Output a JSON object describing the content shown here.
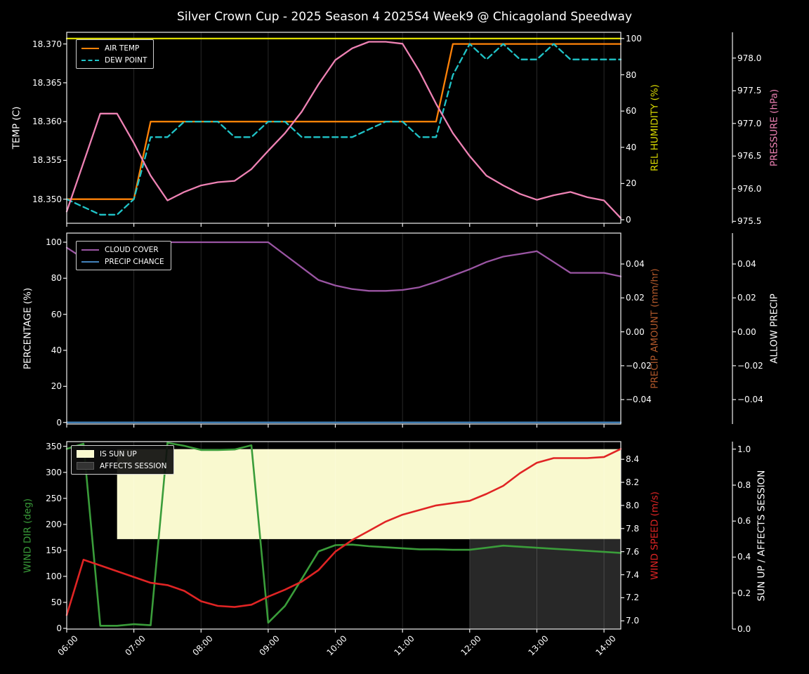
{
  "title": "Silver Crown Cup - 2025 Season 4 2025S4 Week9 @ Chicagoland Speedway",
  "colors": {
    "background": "#000000",
    "text": "#ffffff",
    "spine": "#efefef",
    "grid": "rgba(255,255,255,0.16)",
    "air_temp": "#ff8208",
    "dew_point": "#20c4c8",
    "rel_humidity": "#dcdc00",
    "pressure": "#ee82b4",
    "cloud_cover": "#9a55a3",
    "precip_chance": "#4383bc",
    "precip_amount": "#b2592b",
    "wind_dir": "#3a9d3a",
    "wind_speed": "#e02424",
    "sun_fill": "#f9f9cf",
    "affects_fill": "#282828",
    "affects_patch": "#333333"
  },
  "chart_data": {
    "type": "line",
    "x": {
      "label_unit": "time of day",
      "hours": [
        6,
        6.25,
        6.5,
        6.75,
        7,
        7.25,
        7.5,
        7.75,
        8,
        8.25,
        8.5,
        8.75,
        9,
        9.25,
        9.5,
        9.75,
        10,
        10.25,
        10.5,
        10.75,
        11,
        11.25,
        11.5,
        11.75,
        12,
        12.25,
        12.5,
        12.75,
        13,
        13.25,
        13.5,
        13.75,
        14,
        14.25
      ],
      "tick_hours": [
        6,
        7,
        8,
        9,
        10,
        11,
        12,
        13,
        14
      ],
      "tick_labels": [
        "06:00",
        "07:00",
        "08:00",
        "09:00",
        "10:00",
        "11:00",
        "12:00",
        "13:00",
        "14:00"
      ]
    },
    "panels": [
      {
        "name": "temperature-humidity-pressure",
        "axes": {
          "left": {
            "label": "TEMP (C)",
            "color": "#ffffff",
            "tick_labels": [
              "18.350",
              "18.355",
              "18.360",
              "18.365",
              "18.370"
            ],
            "tick_values": [
              18.35,
              18.355,
              18.36,
              18.365,
              18.37
            ],
            "range": [
              18.3469,
              18.3715
            ]
          },
          "right_inner": {
            "label": "REL HUMIDITY (%)",
            "color": "#dcdc00",
            "tick_labels": [
              "0",
              "20",
              "40",
              "60",
              "80",
              "100"
            ],
            "tick_values": [
              0,
              20,
              40,
              60,
              80,
              100
            ],
            "range": [
              -1.94,
              103.46
            ]
          },
          "right_outer": {
            "label": "PRESSURE (hPa)",
            "color": "#ee82b4",
            "tick_labels": [
              "975.5",
              "976.0",
              "976.5",
              "977.0",
              "977.5",
              "978.0"
            ],
            "tick_values": [
              975.5,
              976.0,
              976.5,
              977.0,
              977.5,
              978.0
            ],
            "range": [
              975.471,
              978.395
            ]
          }
        },
        "legend": [
          {
            "label": "AIR TEMP",
            "swatch": "line",
            "color": "#ff8208"
          },
          {
            "label": "DEW POINT",
            "swatch": "dash",
            "color": "#20c4c8"
          }
        ],
        "series": [
          {
            "name": "AIR TEMP",
            "axis": "left",
            "color": "#ff8208",
            "dash": false,
            "values": [
              18.35,
              18.35,
              18.35,
              18.35,
              18.35,
              18.36,
              18.36,
              18.36,
              18.36,
              18.36,
              18.36,
              18.36,
              18.36,
              18.36,
              18.36,
              18.36,
              18.36,
              18.36,
              18.36,
              18.36,
              18.36,
              18.36,
              18.36,
              18.37,
              18.37,
              18.37,
              18.37,
              18.37,
              18.37,
              18.37,
              18.37,
              18.37,
              18.37,
              18.37
            ]
          },
          {
            "name": "DEW POINT",
            "axis": "left",
            "color": "#20c4c8",
            "dash": true,
            "values": [
              18.35,
              18.349,
              18.348,
              18.348,
              18.35,
              18.358,
              18.358,
              18.36,
              18.36,
              18.36,
              18.358,
              18.358,
              18.36,
              18.36,
              18.358,
              18.358,
              18.358,
              18.358,
              18.359,
              18.36,
              18.36,
              18.358,
              18.358,
              18.366,
              18.37,
              18.368,
              18.37,
              18.368,
              18.368,
              18.37,
              18.368,
              18.368,
              18.368,
              18.368
            ]
          },
          {
            "name": "REL HUMIDITY",
            "axis": "right_inner",
            "color": "#dcdc00",
            "dash": false,
            "values": [
              100,
              100,
              100,
              100,
              100,
              100,
              100,
              100,
              100,
              100,
              100,
              100,
              100,
              100,
              100,
              100,
              100,
              100,
              100,
              100,
              100,
              100,
              100,
              100,
              100,
              100,
              100,
              100,
              100,
              100,
              100,
              100,
              100,
              100
            ]
          },
          {
            "name": "PRESSURE",
            "axis": "right_outer",
            "color": "#ee82b4",
            "dash": false,
            "values": [
              975.65,
              976.4,
              977.15,
              977.15,
              976.7,
              976.2,
              975.82,
              975.95,
              976.05,
              976.1,
              976.12,
              976.3,
              976.58,
              976.85,
              977.18,
              977.6,
              977.97,
              978.15,
              978.25,
              978.25,
              978.22,
              977.8,
              977.3,
              976.85,
              976.5,
              976.2,
              976.05,
              975.92,
              975.83,
              975.9,
              975.95,
              975.87,
              975.82,
              975.55
            ]
          }
        ]
      },
      {
        "name": "cloud-precip",
        "axes": {
          "left": {
            "label": "PERCENTAGE (%)",
            "color": "#ffffff",
            "tick_labels": [
              "0",
              "20",
              "40",
              "60",
              "80",
              "100"
            ],
            "tick_values": [
              0,
              20,
              40,
              60,
              80,
              100
            ],
            "range": [
              -0.9,
              105.06
            ]
          },
          "right_inner": {
            "label": "PRECIP AMOUNT (mm/hr)",
            "color": "#b2592b",
            "tick_labels": [
              "0.04",
              "0.02",
              "0.00",
              "−0.02",
              "−0.04"
            ],
            "tick_values": [
              0.04,
              0.02,
              0.0,
              -0.02,
              -0.04
            ],
            "range": [
              -0.0544,
              0.0582
            ]
          },
          "right_outer": {
            "label": "ALLOW PRECIP",
            "color": "#ffffff",
            "tick_labels": [
              "0.04",
              "0.02",
              "0.00",
              "−0.02",
              "−0.04"
            ],
            "tick_values": [
              0.04,
              0.02,
              0.0,
              -0.02,
              -0.04
            ],
            "range": [
              -0.0544,
              0.0582
            ]
          }
        },
        "legend": [
          {
            "label": "CLOUD COVER",
            "swatch": "line",
            "color": "#9a55a3"
          },
          {
            "label": "PRECIP CHANCE",
            "swatch": "line",
            "color": "#4383bc"
          }
        ],
        "series": [
          {
            "name": "CLOUD COVER",
            "axis": "left",
            "color": "#9a55a3",
            "dash": false,
            "values": [
              97,
              91,
              86,
              89,
              95,
              99,
              100,
              100,
              100,
              100,
              100,
              100,
              100,
              93,
              86,
              79,
              76,
              74,
              73,
              73,
              73.5,
              75,
              78,
              81.5,
              85,
              89,
              92,
              93.5,
              95,
              89,
              83,
              83,
              83,
              81
            ]
          },
          {
            "name": "PRECIP CHANCE",
            "axis": "left",
            "color": "#4383bc",
            "dash": false,
            "values": [
              0,
              0,
              0,
              0,
              0,
              0,
              0,
              0,
              0,
              0,
              0,
              0,
              0,
              0,
              0,
              0,
              0,
              0,
              0,
              0,
              0,
              0,
              0,
              0,
              0,
              0,
              0,
              0,
              0,
              0,
              0,
              0,
              0,
              0
            ]
          }
        ]
      },
      {
        "name": "wind-sun",
        "axes": {
          "left": {
            "label": "WIND DIR (deg)",
            "color": "#3a9d3a",
            "tick_labels": [
              "0",
              "50",
              "100",
              "150",
              "200",
              "250",
              "300",
              "350"
            ],
            "tick_values": [
              0,
              50,
              100,
              150,
              200,
              250,
              300,
              350
            ],
            "range": [
              -1.35,
              359.1
            ]
          },
          "right_inner": {
            "label": "WIND SPEED (m/s)",
            "color": "#e02424",
            "tick_labels": [
              "7.0",
              "7.2",
              "7.4",
              "7.6",
              "7.8",
              "8.0",
              "8.2",
              "8.4"
            ],
            "tick_values": [
              7.0,
              7.2,
              7.4,
              7.6,
              7.8,
              8.0,
              8.2,
              8.4
            ],
            "range": [
              6.929,
              8.553
            ]
          },
          "right_outer": {
            "label": "SUN UP / AFFECTS SESSION",
            "color": "#ffffff",
            "tick_labels": [
              "0.0",
              "0.2",
              "0.4",
              "0.6",
              "0.8",
              "1.0"
            ],
            "tick_values": [
              0,
              0.2,
              0.4,
              0.6,
              0.8,
              1.0
            ],
            "range": [
              0,
              1.0417
            ]
          }
        },
        "legend": [
          {
            "label": "IS SUN UP",
            "swatch": "patch",
            "color": "#f9f9cf"
          },
          {
            "label": "AFFECTS SESSION",
            "swatch": "patch",
            "color": "#333333"
          }
        ],
        "bands": [
          {
            "name": "IS SUN UP",
            "color": "#f9f9cf",
            "axis": "right_outer",
            "from_hour": 6.75,
            "to_hour": 14.25,
            "band": [
              0.5,
              1.0
            ],
            "meaning": "sun up = 1 from 06:45"
          },
          {
            "name": "AFFECTS SESSION",
            "color": "#282828",
            "axis": "right_outer",
            "from_hour": 12.0,
            "to_hour": 14.25,
            "band": [
              0.0,
              0.5
            ],
            "meaning": "affects session = 1 from 12:00"
          }
        ],
        "series": [
          {
            "name": "WIND DIR",
            "axis": "left",
            "color": "#3a9d3a",
            "dash": false,
            "values": [
              345,
              355,
              5,
              5,
              8,
              6,
              357,
              351,
              343,
              343,
              344,
              352,
              11,
              43,
              95,
              148,
              160,
              161,
              158,
              156,
              154,
              152,
              152,
              151,
              151,
              155,
              159,
              157,
              155,
              153,
              151,
              149,
              147,
              145
            ]
          },
          {
            "name": "WIND SPEED",
            "axis": "right_inner",
            "color": "#e02424",
            "dash": false,
            "values": [
              7.05,
              7.53,
              7.48,
              7.43,
              7.38,
              7.33,
              7.31,
              7.26,
              7.17,
              7.13,
              7.12,
              7.14,
              7.21,
              7.27,
              7.34,
              7.44,
              7.6,
              7.7,
              7.78,
              7.86,
              7.92,
              7.96,
              8.0,
              8.02,
              8.04,
              8.1,
              8.17,
              8.28,
              8.37,
              8.41,
              8.41,
              8.41,
              8.42,
              8.49
            ]
          }
        ]
      }
    ]
  }
}
